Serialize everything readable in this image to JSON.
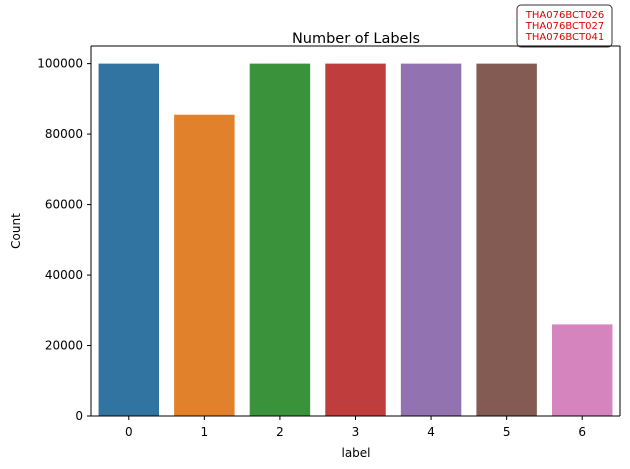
{
  "chart_data": {
    "type": "bar",
    "title": "Number of Labels",
    "xlabel": "label",
    "ylabel": "Count",
    "categories": [
      "0",
      "1",
      "2",
      "3",
      "4",
      "5",
      "6"
    ],
    "values": [
      100000,
      85500,
      100000,
      100000,
      100000,
      100000,
      26000
    ],
    "colors": [
      "#3274a1",
      "#e1812c",
      "#3a923a",
      "#c03d3e",
      "#9372b2",
      "#845b53",
      "#d684bd"
    ],
    "ylim": [
      0,
      105000
    ],
    "yticks": [
      0,
      20000,
      40000,
      60000,
      80000,
      100000
    ],
    "ytick_labels": [
      "0",
      "20000",
      "40000",
      "60000",
      "80000",
      "100000"
    ],
    "grid": false,
    "legend": null,
    "annotation": {
      "lines": [
        "THA076BCT026",
        "THA076BCT027",
        "THA076BCT041"
      ],
      "color": "#e00000"
    }
  }
}
